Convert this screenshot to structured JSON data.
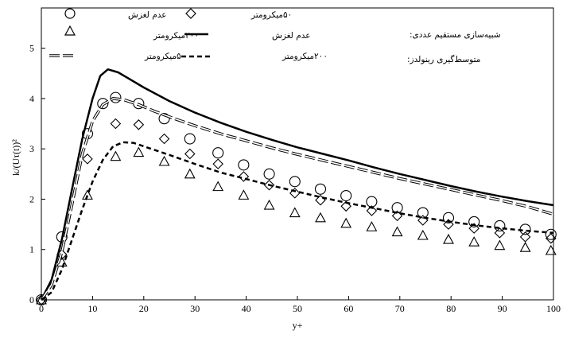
{
  "chart_data": {
    "type": "line",
    "xlabel": "y+",
    "ylabel": "k/(Uτ(t))²",
    "xlim": [
      0,
      100
    ],
    "ylim": [
      0,
      5.8
    ],
    "xticks": [
      0,
      10,
      20,
      30,
      40,
      50,
      60,
      70,
      80,
      90,
      100
    ],
    "yticks": [
      0,
      1,
      2,
      3,
      4,
      5
    ],
    "grid": false,
    "legend": {
      "placement": "top",
      "dns_heading": "شبیه‌سازی مستقیم عددی:",
      "rans_heading": "متوسط‌گیری رینولدز:"
    },
    "series": [
      {
        "name": "عدم لغزش",
        "group": "dns",
        "style": "circle",
        "points": [
          [
            0,
            0
          ],
          [
            4,
            1.25
          ],
          [
            9,
            3.3
          ],
          [
            12,
            3.9
          ],
          [
            14.5,
            4.02
          ],
          [
            19,
            3.9
          ],
          [
            24,
            3.6
          ],
          [
            29,
            3.2
          ],
          [
            34.5,
            2.92
          ],
          [
            39.5,
            2.68
          ],
          [
            44.5,
            2.5
          ],
          [
            49.5,
            2.35
          ],
          [
            54.5,
            2.2
          ],
          [
            59.5,
            2.07
          ],
          [
            64.5,
            1.95
          ],
          [
            69.5,
            1.83
          ],
          [
            74.5,
            1.73
          ],
          [
            79.5,
            1.63
          ],
          [
            84.5,
            1.55
          ],
          [
            89.5,
            1.47
          ],
          [
            94.5,
            1.4
          ],
          [
            99.5,
            1.3
          ]
        ]
      },
      {
        "name": "۵۰میکرومتر",
        "group": "dns",
        "style": "diamond",
        "points": [
          [
            0,
            0
          ],
          [
            4,
            0.9
          ],
          [
            9,
            2.8
          ],
          [
            14.5,
            3.5
          ],
          [
            19,
            3.48
          ],
          [
            24,
            3.2
          ],
          [
            29,
            2.9
          ],
          [
            34.5,
            2.7
          ],
          [
            39.5,
            2.45
          ],
          [
            44.5,
            2.28
          ],
          [
            49.5,
            2.12
          ],
          [
            54.5,
            1.98
          ],
          [
            59.5,
            1.86
          ],
          [
            64.5,
            1.77
          ],
          [
            69.5,
            1.67
          ],
          [
            74.5,
            1.58
          ],
          [
            79.5,
            1.5
          ],
          [
            84.5,
            1.42
          ],
          [
            89.5,
            1.33
          ],
          [
            94.5,
            1.25
          ],
          [
            99.5,
            1.22
          ]
        ]
      },
      {
        "name": "۲۰۰میکرومتر",
        "group": "dns",
        "style": "triangle",
        "points": [
          [
            0,
            0
          ],
          [
            4,
            0.75
          ],
          [
            9,
            2.08
          ],
          [
            14.5,
            2.85
          ],
          [
            19,
            2.93
          ],
          [
            24,
            2.75
          ],
          [
            29,
            2.5
          ],
          [
            34.5,
            2.25
          ],
          [
            39.5,
            2.08
          ],
          [
            44.5,
            1.88
          ],
          [
            49.5,
            1.73
          ],
          [
            54.5,
            1.63
          ],
          [
            59.5,
            1.52
          ],
          [
            64.5,
            1.45
          ],
          [
            69.5,
            1.35
          ],
          [
            74.5,
            1.28
          ],
          [
            79.5,
            1.2
          ],
          [
            84.5,
            1.15
          ],
          [
            89.5,
            1.08
          ],
          [
            94.5,
            1.04
          ],
          [
            99.5,
            0.98
          ]
        ]
      },
      {
        "name": "عدم لغزش",
        "group": "rans",
        "style": "solid",
        "points": [
          [
            0,
            0
          ],
          [
            2,
            0.4
          ],
          [
            4,
            1.2
          ],
          [
            6,
            2.2
          ],
          [
            8,
            3.2
          ],
          [
            10,
            4.0
          ],
          [
            11.5,
            4.45
          ],
          [
            13,
            4.58
          ],
          [
            15,
            4.52
          ],
          [
            17,
            4.4
          ],
          [
            20,
            4.22
          ],
          [
            25,
            3.95
          ],
          [
            30,
            3.72
          ],
          [
            35,
            3.52
          ],
          [
            40,
            3.34
          ],
          [
            45,
            3.18
          ],
          [
            50,
            3.03
          ],
          [
            55,
            2.9
          ],
          [
            60,
            2.77
          ],
          [
            65,
            2.63
          ],
          [
            70,
            2.5
          ],
          [
            75,
            2.38
          ],
          [
            80,
            2.26
          ],
          [
            85,
            2.15
          ],
          [
            90,
            2.05
          ],
          [
            95,
            1.96
          ],
          [
            100,
            1.88
          ]
        ]
      },
      {
        "name": "۵۰میکرومتر",
        "group": "rans",
        "style": "long-dash",
        "points": [
          [
            0,
            0
          ],
          [
            2,
            0.3
          ],
          [
            4,
            0.95
          ],
          [
            6,
            1.9
          ],
          [
            8,
            2.9
          ],
          [
            10,
            3.55
          ],
          [
            12,
            3.88
          ],
          [
            14,
            4.0
          ],
          [
            16,
            3.98
          ],
          [
            19,
            3.88
          ],
          [
            22,
            3.75
          ],
          [
            26,
            3.6
          ],
          [
            30,
            3.46
          ],
          [
            35,
            3.3
          ],
          [
            40,
            3.16
          ],
          [
            45,
            3.02
          ],
          [
            50,
            2.89
          ],
          [
            55,
            2.77
          ],
          [
            60,
            2.65
          ],
          [
            65,
            2.53
          ],
          [
            70,
            2.41
          ],
          [
            75,
            2.3
          ],
          [
            80,
            2.19
          ],
          [
            85,
            2.08
          ],
          [
            90,
            1.97
          ],
          [
            95,
            1.85
          ],
          [
            100,
            1.7
          ]
        ]
      },
      {
        "name": "۲۰۰میکرومتر",
        "group": "rans",
        "style": "short-dash",
        "points": [
          [
            0,
            0
          ],
          [
            2,
            0.15
          ],
          [
            4,
            0.6
          ],
          [
            6,
            1.2
          ],
          [
            8,
            1.8
          ],
          [
            10,
            2.35
          ],
          [
            12,
            2.78
          ],
          [
            14,
            3.05
          ],
          [
            16,
            3.13
          ],
          [
            18,
            3.12
          ],
          [
            20,
            3.05
          ],
          [
            25,
            2.88
          ],
          [
            30,
            2.7
          ],
          [
            35,
            2.53
          ],
          [
            40,
            2.4
          ],
          [
            45,
            2.27
          ],
          [
            50,
            2.15
          ],
          [
            55,
            2.03
          ],
          [
            60,
            1.92
          ],
          [
            65,
            1.82
          ],
          [
            70,
            1.72
          ],
          [
            75,
            1.63
          ],
          [
            80,
            1.55
          ],
          [
            85,
            1.48
          ],
          [
            90,
            1.42
          ],
          [
            95,
            1.37
          ],
          [
            100,
            1.33
          ]
        ]
      }
    ]
  }
}
